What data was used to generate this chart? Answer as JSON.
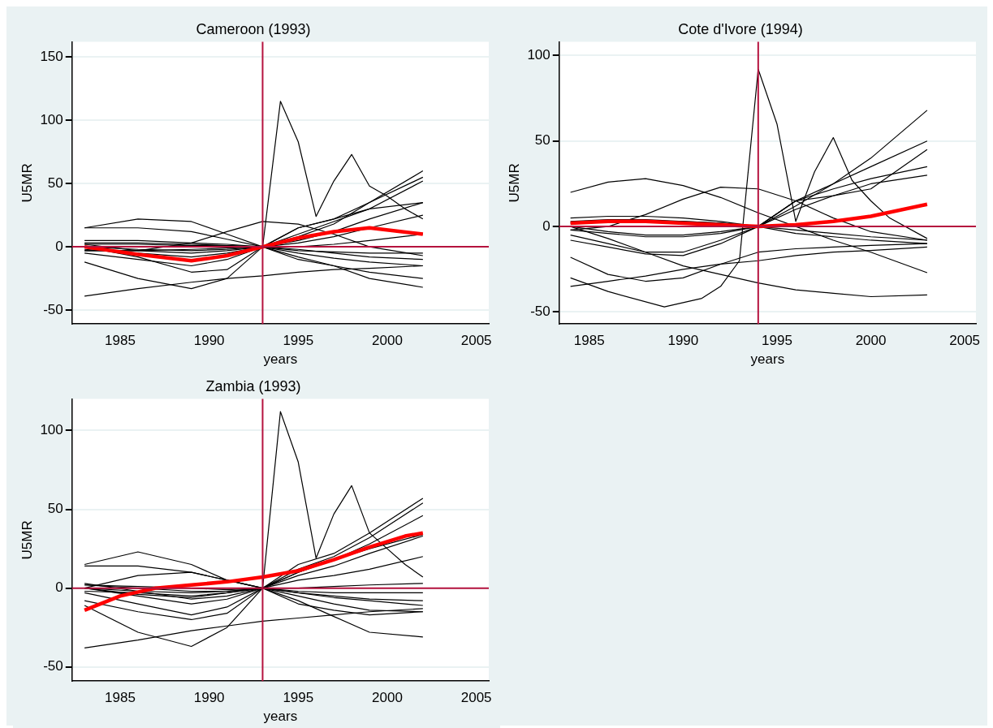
{
  "chart_data": [
    {
      "type": "line",
      "title": "Cameroon (1993)",
      "xlabel": "years",
      "ylabel": "U5MR",
      "xlim": [
        1982.3,
        2005.7
      ],
      "ylim": [
        -61,
        162
      ],
      "xticks": [
        1985,
        1990,
        1995,
        2000,
        2005
      ],
      "yticks": [
        -50,
        0,
        50,
        100,
        150
      ],
      "grid": "y",
      "legend": false,
      "marker": "none",
      "line_style": "solid",
      "ref_lines": [
        {
          "axis": "x",
          "value": 1993,
          "color": "#b5123e"
        },
        {
          "axis": "y",
          "value": 0,
          "color": "#b5123e"
        }
      ],
      "series": [
        {
          "color": "#000000",
          "x": [
            1983,
            1985,
            1987,
            1989,
            1991,
            1992,
            1993,
            1994,
            1995,
            1996,
            1997,
            1998,
            1999,
            2000,
            2001,
            2002
          ],
          "values": [
            0,
            0,
            0,
            0,
            0,
            0,
            0,
            115,
            83,
            24,
            52,
            73,
            48,
            40,
            30,
            22
          ]
        },
        {
          "color": "#000000",
          "x": [
            1983,
            1986,
            1989,
            1991,
            1993,
            1995,
            1997,
            1999,
            2002
          ],
          "values": [
            15,
            22,
            20,
            10,
            0,
            -5,
            -9,
            -12,
            -15
          ]
        },
        {
          "color": "#000000",
          "x": [
            1983,
            1986,
            1989,
            1991,
            1993,
            1995,
            1997,
            1999,
            2002
          ],
          "values": [
            15,
            15,
            12,
            6,
            0,
            -10,
            -15,
            -20,
            -25
          ]
        },
        {
          "color": "#000000",
          "x": [
            1983,
            1986,
            1989,
            1991,
            1993,
            1995,
            1997,
            1999,
            2002
          ],
          "values": [
            -39,
            -33,
            -28,
            -25,
            -23,
            -20,
            -18,
            -17,
            -15
          ]
        },
        {
          "color": "#000000",
          "x": [
            1983,
            1986,
            1989,
            1991,
            1993,
            1995,
            1997,
            1999,
            2002
          ],
          "values": [
            -12,
            -25,
            -33,
            -25,
            0,
            15,
            22,
            30,
            35
          ]
        },
        {
          "color": "#000000",
          "x": [
            1983,
            1986,
            1989,
            1991,
            1993,
            1995,
            1997,
            1999,
            2002
          ],
          "values": [
            -3,
            -3,
            3,
            12,
            20,
            18,
            10,
            0,
            -7
          ]
        },
        {
          "color": "#000000",
          "x": [
            1983,
            1986,
            1989,
            1991,
            1993,
            1995,
            1997,
            1999,
            2002
          ],
          "values": [
            0,
            -8,
            -20,
            -18,
            0,
            15,
            22,
            35,
            60
          ]
        },
        {
          "color": "#000000",
          "x": [
            1983,
            1986,
            1989,
            1991,
            1993,
            1995,
            1997,
            1999,
            2002
          ],
          "values": [
            2,
            -3,
            -5,
            -3,
            0,
            8,
            18,
            35,
            55
          ]
        },
        {
          "color": "#000000",
          "x": [
            1983,
            1986,
            1989,
            1991,
            1993,
            1995,
            1997,
            1999,
            2002
          ],
          "values": [
            -5,
            -10,
            -15,
            -10,
            0,
            10,
            20,
            30,
            52
          ]
        },
        {
          "color": "#000000",
          "x": [
            1983,
            1986,
            1989,
            1991,
            1993,
            1995,
            1997,
            1999,
            2002
          ],
          "values": [
            3,
            3,
            2,
            1,
            0,
            5,
            12,
            22,
            35
          ]
        },
        {
          "color": "#000000",
          "x": [
            1983,
            1986,
            1989,
            1991,
            1993,
            1995,
            1997,
            1999,
            2002
          ],
          "values": [
            0,
            -2,
            -3,
            -2,
            0,
            3,
            8,
            15,
            25
          ]
        },
        {
          "color": "#000000",
          "x": [
            1983,
            1986,
            1989,
            1991,
            1993,
            1995,
            1997,
            1999,
            2002
          ],
          "values": [
            2,
            2,
            1,
            1,
            0,
            0,
            2,
            5,
            10
          ]
        },
        {
          "color": "#000000",
          "x": [
            1983,
            1986,
            1989,
            1991,
            1993,
            1995,
            1997,
            1999,
            2002
          ],
          "values": [
            -3,
            -3,
            -2,
            -1,
            0,
            -3,
            -4,
            -5,
            -5
          ]
        },
        {
          "color": "#000000",
          "x": [
            1983,
            1986,
            1989,
            1991,
            1993,
            1995,
            1997,
            1999,
            2002
          ],
          "values": [
            5,
            5,
            3,
            2,
            0,
            -2,
            -5,
            -8,
            -10
          ]
        },
        {
          "color": "#000000",
          "x": [
            1983,
            1986,
            1989,
            1991,
            1993,
            1995,
            1997,
            1999,
            2002
          ],
          "values": [
            -2,
            -5,
            -8,
            -5,
            0,
            -8,
            -15,
            -25,
            -32
          ]
        },
        {
          "color": "#ff0000",
          "x": [
            1983,
            1986,
            1989,
            1991,
            1993,
            1995,
            1997,
            1999,
            2002
          ],
          "values": [
            0,
            -6,
            -11,
            -7,
            0,
            7,
            12,
            15,
            10
          ]
        }
      ]
    },
    {
      "type": "line",
      "title": "Cote d'Ivore (1994)",
      "xlabel": "years",
      "ylabel": "U5MR",
      "xlim": [
        1983.4,
        2005.6
      ],
      "ylim": [
        -57,
        108
      ],
      "xticks": [
        1985,
        1990,
        1995,
        2000,
        2005
      ],
      "yticks": [
        -50,
        0,
        50,
        100
      ],
      "grid": "y",
      "legend": false,
      "marker": "none",
      "line_style": "solid",
      "ref_lines": [
        {
          "axis": "x",
          "value": 1994,
          "color": "#b5123e"
        },
        {
          "axis": "y",
          "value": 0,
          "color": "#b5123e"
        }
      ],
      "series": [
        {
          "color": "#000000",
          "x": [
            1984,
            1986,
            1989,
            1991,
            1992,
            1993,
            1994,
            1995,
            1996,
            1997,
            1998,
            1999,
            2000,
            2001,
            2003
          ],
          "values": [
            -30,
            -38,
            -47,
            -42,
            -35,
            -20,
            92,
            60,
            3,
            32,
            52,
            27,
            15,
            5,
            -7
          ]
        },
        {
          "color": "#000000",
          "x": [
            1984,
            1986,
            1988,
            1990,
            1992,
            1994,
            1996,
            1998,
            2000,
            2003
          ],
          "values": [
            20,
            26,
            28,
            24,
            17,
            8,
            0,
            -8,
            -15,
            -27
          ]
        },
        {
          "color": "#000000",
          "x": [
            1984,
            1986,
            1988,
            1990,
            1992,
            1994,
            1996,
            1998,
            2000,
            2003
          ],
          "values": [
            -2,
            0,
            7,
            16,
            23,
            22,
            15,
            5,
            -3,
            -8
          ]
        },
        {
          "color": "#000000",
          "x": [
            1984,
            1986,
            1988,
            1990,
            1992,
            1994,
            1996,
            1998,
            2000,
            2003
          ],
          "values": [
            -35,
            -32,
            -29,
            -25,
            -22,
            -20,
            -17,
            -15,
            -14,
            -12
          ]
        },
        {
          "color": "#000000",
          "x": [
            1984,
            1986,
            1988,
            1990,
            1992,
            1994,
            1996,
            1998,
            2000,
            2003
          ],
          "values": [
            -18,
            -28,
            -32,
            -30,
            -22,
            -15,
            -13,
            -12,
            -11,
            -10
          ]
        },
        {
          "color": "#000000",
          "x": [
            1984,
            1986,
            1988,
            1990,
            1992,
            1994,
            1996,
            1998,
            2000,
            2003
          ],
          "values": [
            0,
            -7,
            -15,
            -23,
            -28,
            -33,
            -37,
            -39,
            -41,
            -40
          ]
        },
        {
          "color": "#000000",
          "x": [
            1984,
            1986,
            1988,
            1990,
            1992,
            1994,
            1996,
            1998,
            2000,
            2003
          ],
          "values": [
            5,
            6,
            6,
            5,
            3,
            0,
            15,
            25,
            35,
            50
          ]
        },
        {
          "color": "#000000",
          "x": [
            1984,
            1986,
            1988,
            1990,
            1992,
            1994,
            1996,
            1998,
            2000,
            2003
          ],
          "values": [
            2,
            3,
            3,
            3,
            2,
            0,
            12,
            25,
            40,
            68
          ]
        },
        {
          "color": "#000000",
          "x": [
            1984,
            1986,
            1988,
            1990,
            1992,
            1994,
            1996,
            1998,
            2000,
            2003
          ],
          "values": [
            -5,
            -10,
            -15,
            -15,
            -8,
            0,
            15,
            18,
            22,
            45
          ]
        },
        {
          "color": "#000000",
          "x": [
            1984,
            1986,
            1988,
            1990,
            1992,
            1994,
            1996,
            1998,
            2000,
            2003
          ],
          "values": [
            -8,
            -12,
            -16,
            -17,
            -10,
            0,
            15,
            22,
            28,
            35
          ]
        },
        {
          "color": "#000000",
          "x": [
            1984,
            1986,
            1988,
            1990,
            1992,
            1994,
            1996,
            1998,
            2000,
            2003
          ],
          "values": [
            0,
            -3,
            -5,
            -5,
            -3,
            0,
            10,
            18,
            25,
            30
          ]
        },
        {
          "color": "#000000",
          "x": [
            1984,
            1986,
            1988,
            1990,
            1992,
            1994,
            1996,
            1998,
            2000,
            2003
          ],
          "values": [
            3,
            4,
            4,
            3,
            2,
            0,
            -2,
            -4,
            -6,
            -8
          ]
        },
        {
          "color": "#000000",
          "x": [
            1984,
            1986,
            1988,
            1990,
            1992,
            1994,
            1996,
            1998,
            2000,
            2003
          ],
          "values": [
            -2,
            -4,
            -6,
            -6,
            -4,
            0,
            -4,
            -6,
            -8,
            -10
          ]
        },
        {
          "color": "#ff0000",
          "x": [
            1984,
            1986,
            1988,
            1990,
            1992,
            1994,
            1996,
            1998,
            2000,
            2003
          ],
          "values": [
            2,
            3,
            3,
            2,
            1,
            0,
            1,
            3,
            6,
            13
          ]
        }
      ]
    },
    {
      "type": "line",
      "title": "Zambia (1993)",
      "xlabel": "years",
      "ylabel": "U5MR",
      "xlim": [
        1982.3,
        2005.7
      ],
      "ylim": [
        -59,
        120
      ],
      "xticks": [
        1985,
        1990,
        1995,
        2000,
        2005
      ],
      "yticks": [
        -50,
        0,
        50,
        100
      ],
      "grid": "y",
      "legend": false,
      "marker": "none",
      "line_style": "solid",
      "ref_lines": [
        {
          "axis": "x",
          "value": 1993,
          "color": "#b5123e"
        },
        {
          "axis": "y",
          "value": 0,
          "color": "#b5123e"
        }
      ],
      "series": [
        {
          "color": "#000000",
          "x": [
            1983,
            1985,
            1987,
            1989,
            1991,
            1992,
            1993,
            1994,
            1995,
            1996,
            1997,
            1998,
            1999,
            2000,
            2001,
            2002
          ],
          "values": [
            0,
            0,
            0,
            0,
            0,
            0,
            0,
            112,
            80,
            19,
            47,
            65,
            35,
            25,
            15,
            7
          ]
        },
        {
          "color": "#000000",
          "x": [
            1983,
            1986,
            1989,
            1991,
            1993,
            1995,
            1997,
            1999,
            2002
          ],
          "values": [
            15,
            23,
            15,
            5,
            0,
            -10,
            -14,
            -17,
            -15
          ]
        },
        {
          "color": "#000000",
          "x": [
            1983,
            1986,
            1989,
            1991,
            1993,
            1995,
            1997,
            1999,
            2002
          ],
          "values": [
            14,
            14,
            10,
            5,
            0,
            -3,
            -6,
            -8,
            -11
          ]
        },
        {
          "color": "#000000",
          "x": [
            1983,
            1986,
            1989,
            1991,
            1993,
            1995,
            1997,
            1999,
            2002
          ],
          "values": [
            -38,
            -33,
            -27,
            -24,
            -21,
            -19,
            -17,
            -15,
            -13
          ]
        },
        {
          "color": "#000000",
          "x": [
            1983,
            1986,
            1989,
            1991,
            1993,
            1995,
            1997,
            1999,
            2002
          ],
          "values": [
            -11,
            -28,
            -37,
            -25,
            0,
            10,
            18,
            25,
            34
          ]
        },
        {
          "color": "#000000",
          "x": [
            1983,
            1986,
            1989,
            1991,
            1993,
            1995,
            1997,
            1999,
            2002
          ],
          "values": [
            0,
            8,
            10,
            5,
            0,
            -5,
            -10,
            -14,
            -15
          ]
        },
        {
          "color": "#000000",
          "x": [
            1983,
            1986,
            1989,
            1991,
            1993,
            1995,
            1997,
            1999,
            2002
          ],
          "values": [
            3,
            -2,
            -7,
            -5,
            0,
            15,
            22,
            35,
            57
          ]
        },
        {
          "color": "#000000",
          "x": [
            1983,
            1986,
            1989,
            1991,
            1993,
            1995,
            1997,
            1999,
            2002
          ],
          "values": [
            0,
            -5,
            -10,
            -7,
            0,
            12,
            20,
            32,
            54
          ]
        },
        {
          "color": "#000000",
          "x": [
            1983,
            1986,
            1989,
            1991,
            1993,
            1995,
            1997,
            1999,
            2002
          ],
          "values": [
            -3,
            -10,
            -17,
            -12,
            0,
            10,
            18,
            28,
            46
          ]
        },
        {
          "color": "#000000",
          "x": [
            1983,
            1986,
            1989,
            1991,
            1993,
            1995,
            1997,
            1999,
            2002
          ],
          "values": [
            -8,
            -15,
            -20,
            -16,
            0,
            8,
            14,
            22,
            33
          ]
        },
        {
          "color": "#000000",
          "x": [
            1983,
            1986,
            1989,
            1991,
            1993,
            1995,
            1997,
            1999,
            2002
          ],
          "values": [
            2,
            0,
            -2,
            -2,
            0,
            5,
            8,
            12,
            20
          ]
        },
        {
          "color": "#000000",
          "x": [
            1983,
            1986,
            1989,
            1991,
            1993,
            1995,
            1997,
            1999,
            2002
          ],
          "values": [
            0,
            -2,
            -3,
            -2,
            0,
            0,
            1,
            2,
            3
          ]
        },
        {
          "color": "#000000",
          "x": [
            1983,
            1986,
            1989,
            1991,
            1993,
            1995,
            1997,
            1999,
            2002
          ],
          "values": [
            -2,
            -3,
            -5,
            -3,
            0,
            -3,
            -5,
            -7,
            -8
          ]
        },
        {
          "color": "#000000",
          "x": [
            1983,
            1986,
            1989,
            1991,
            1993,
            1995,
            1997,
            1999,
            2002
          ],
          "values": [
            0,
            -4,
            -6,
            -3,
            0,
            -8,
            -18,
            -28,
            -31
          ]
        },
        {
          "color": "#000000",
          "x": [
            1983,
            1986,
            1989,
            1991,
            1993,
            1995,
            1997,
            1999,
            2002
          ],
          "values": [
            2,
            1,
            0,
            -1,
            0,
            -2,
            -3,
            -3,
            -3
          ]
        },
        {
          "color": "#ff0000",
          "x": [
            1983,
            1985,
            1987,
            1989,
            1991,
            1993,
            1995,
            1997,
            1999,
            2001,
            2002
          ],
          "values": [
            -14,
            -5,
            0,
            2,
            4,
            7,
            11,
            18,
            26,
            33,
            35
          ]
        }
      ]
    }
  ]
}
